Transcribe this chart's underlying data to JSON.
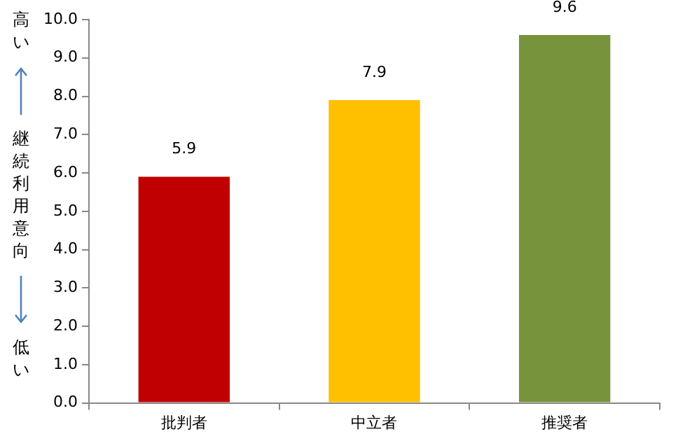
{
  "chart_data": {
    "type": "bar",
    "ylabel": "継続利用意向",
    "annotations": [
      "高い",
      "低い"
    ],
    "categories": [
      "批判者",
      "中立者",
      "推奨者"
    ],
    "values": [
      5.9,
      7.9,
      9.6
    ],
    "colors": [
      "#c00000",
      "#ffc000",
      "#77933c"
    ],
    "ylim": [
      0,
      10
    ],
    "yticks": [
      {
        "value": 0,
        "label": "0.0"
      },
      {
        "value": 1,
        "label": "1.0"
      },
      {
        "value": 2,
        "label": "2.0"
      },
      {
        "value": 3,
        "label": "3.0"
      },
      {
        "value": 4,
        "label": "4.0"
      },
      {
        "value": 5,
        "label": "5.0"
      },
      {
        "value": 6,
        "label": "6.0"
      },
      {
        "value": 7,
        "label": "7.0"
      },
      {
        "value": 8,
        "label": "8.0"
      },
      {
        "value": 9,
        "label": "9.0"
      },
      {
        "value": 10,
        "label": "10.0"
      }
    ],
    "data_labels": true,
    "grid": false
  }
}
